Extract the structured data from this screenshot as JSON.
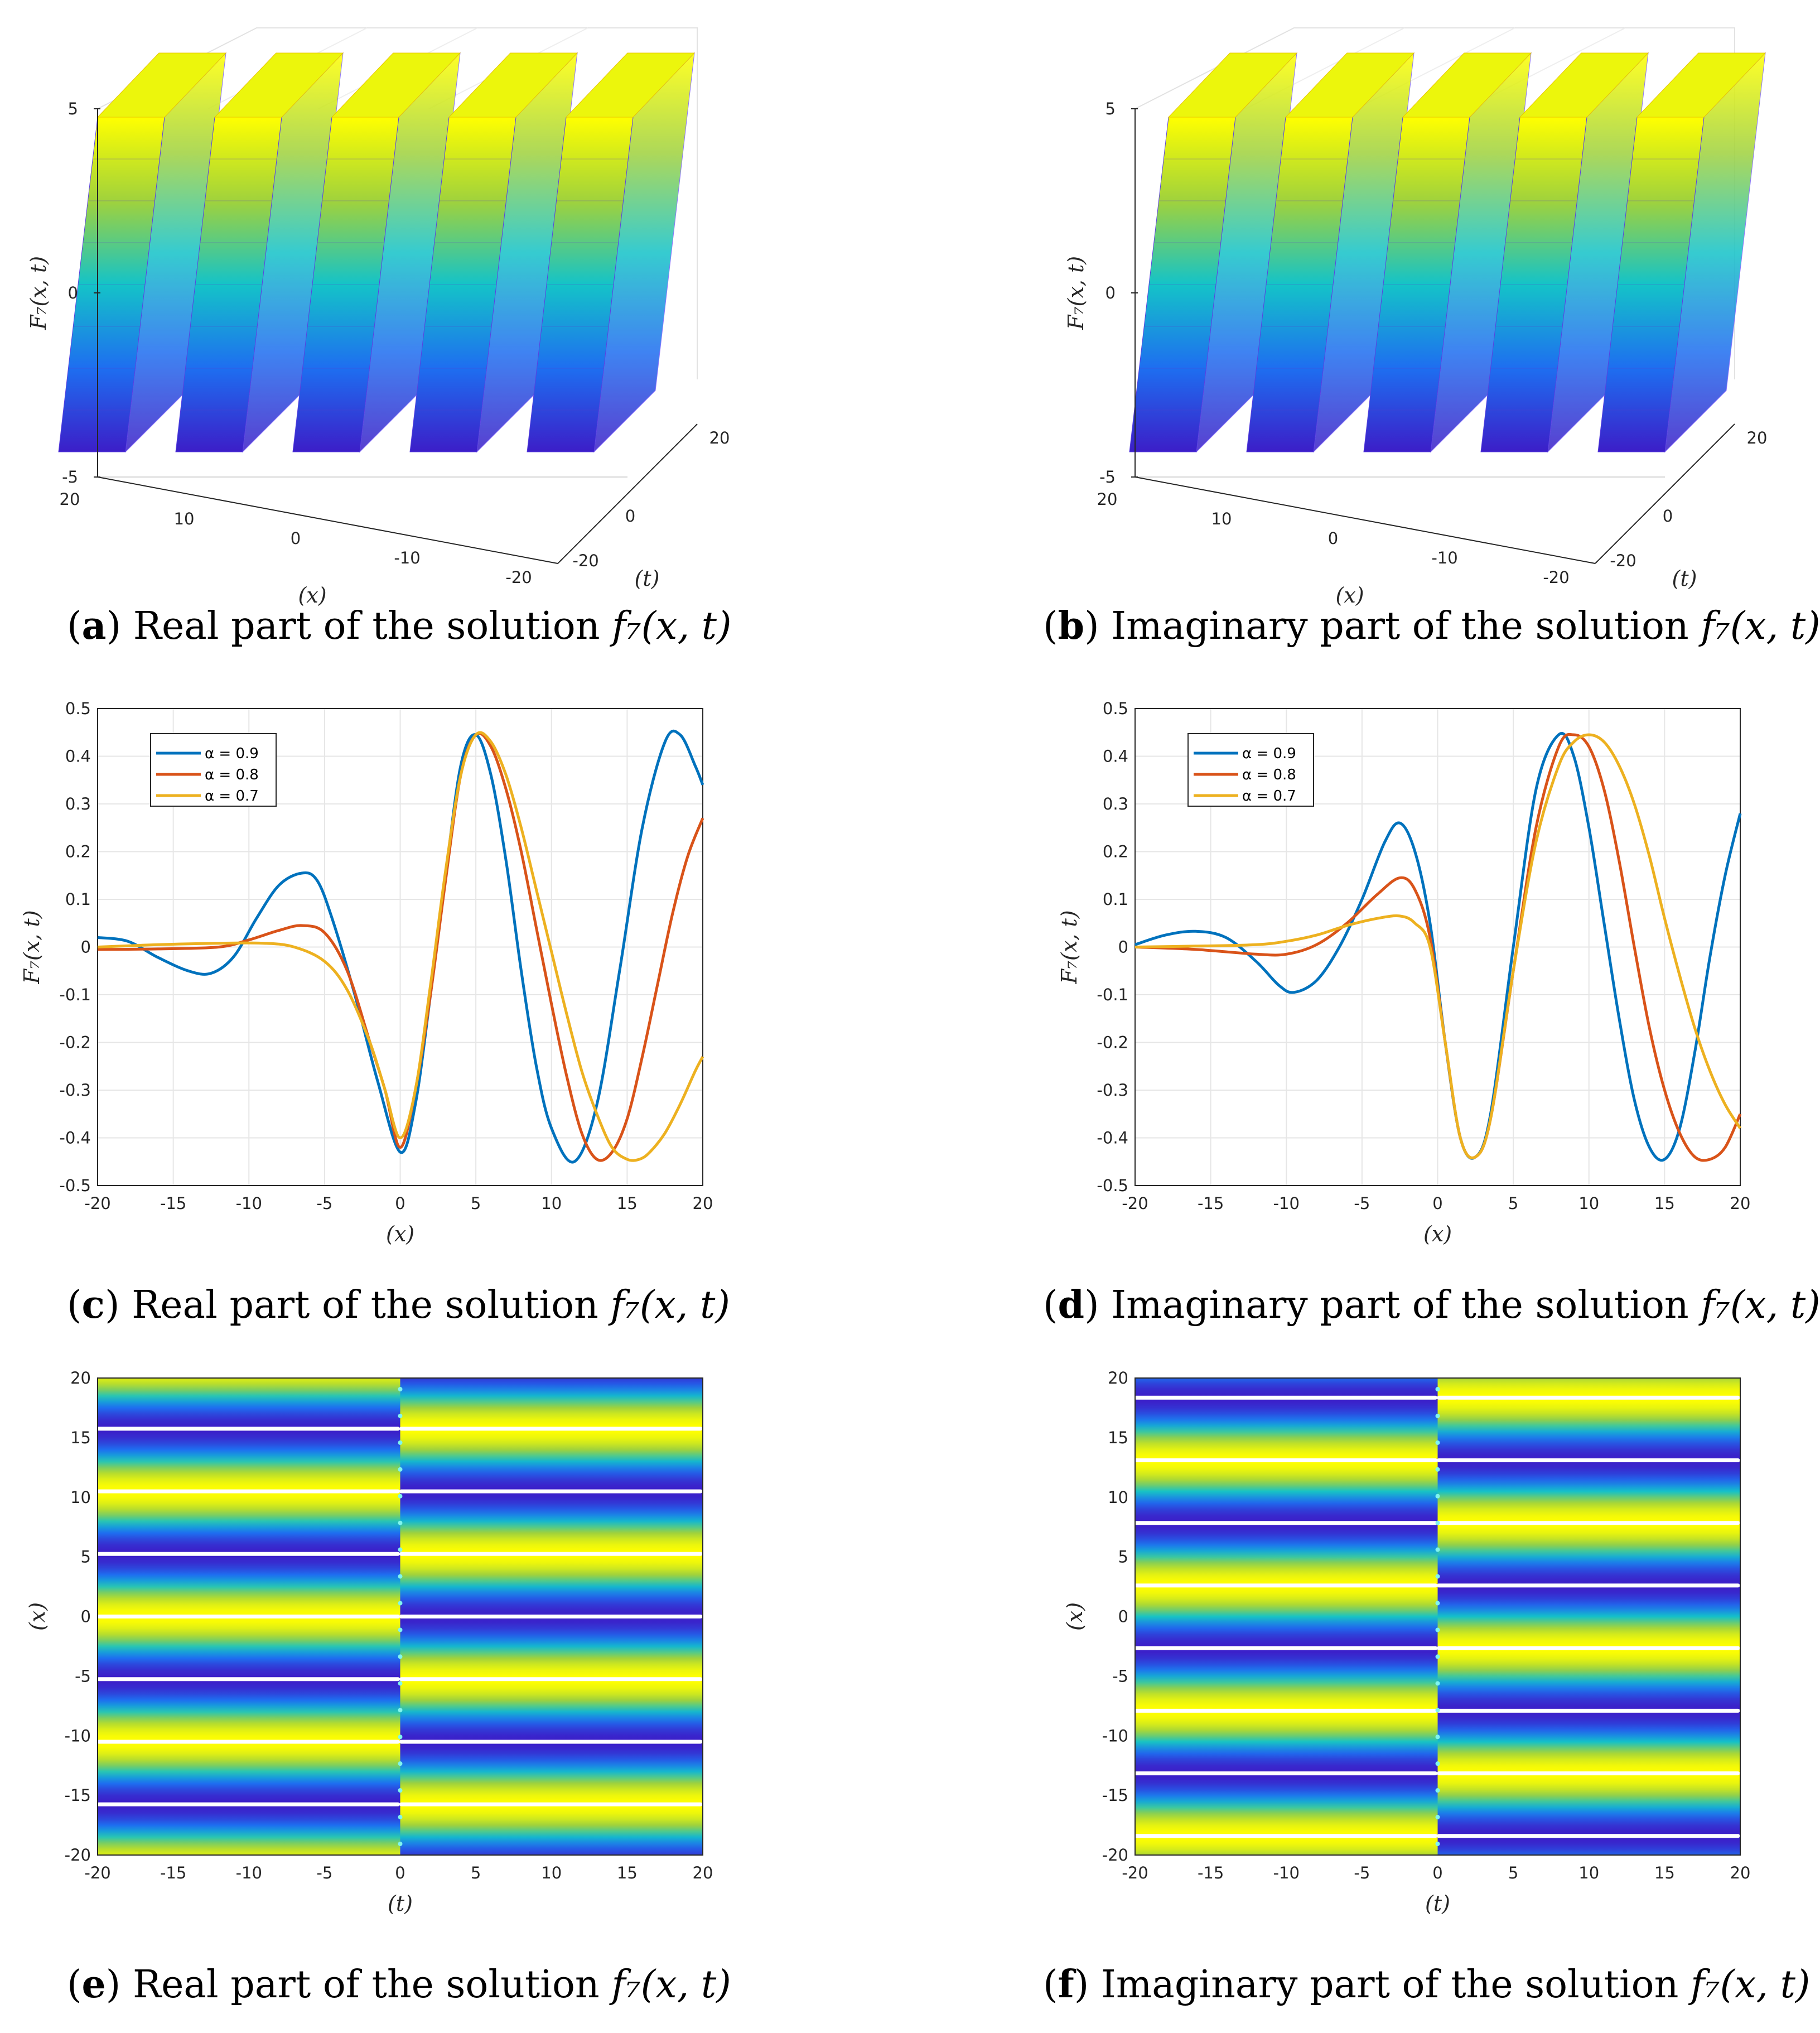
{
  "colors": {
    "series": [
      "#0072BD",
      "#D95319",
      "#EDB120"
    ],
    "surface_low": "#3c1ec8",
    "surface_high": "#ffff00"
  },
  "panels": [
    {
      "letter": "a",
      "caption": "Real part of the solution",
      "func": "f₇(x, t)"
    },
    {
      "letter": "b",
      "caption": "Imaginary part of the solution",
      "func": "f₇(x, t)"
    },
    {
      "letter": "c",
      "caption": "Real part of the solution",
      "func": "f₇(x, t)"
    },
    {
      "letter": "d",
      "caption": "Imaginary part of the solution",
      "func": "f₇(x, t)"
    },
    {
      "letter": "e",
      "caption": "Real part of the solution",
      "func": "f₇(x, t)"
    },
    {
      "letter": "f",
      "caption": "Imaginary part of the solution",
      "func": "f₇(x, t)"
    }
  ],
  "chart_data": [
    {
      "id": "a",
      "type": "surface3d",
      "kind": "real",
      "zlabel": "F₇(x, t)",
      "xlabel": "(x)",
      "ylabel": "(t)",
      "xlim": [
        -20,
        20
      ],
      "ylim": [
        -20,
        20
      ],
      "zlim": [
        -5,
        5
      ],
      "x_ticks": [
        "20",
        "10",
        "0",
        "-10",
        "-20"
      ],
      "y_ticks": [
        "-20",
        "0",
        "20"
      ],
      "z_ticks": [
        "5",
        "0",
        "-5"
      ]
    },
    {
      "id": "b",
      "type": "surface3d",
      "kind": "imag",
      "zlabel": "F₇(x, t)",
      "xlabel": "(x)",
      "ylabel": "(t)",
      "xlim": [
        -20,
        20
      ],
      "ylim": [
        -20,
        20
      ],
      "zlim": [
        -5,
        5
      ],
      "x_ticks": [
        "20",
        "10",
        "0",
        "-10",
        "-20"
      ],
      "y_ticks": [
        "-20",
        "0",
        "20"
      ],
      "z_ticks": [
        "5",
        "0",
        "-5"
      ]
    },
    {
      "id": "c",
      "type": "line",
      "xlabel": "(x)",
      "ylabel": "F₇(x, t)",
      "xlim": [
        -20,
        20
      ],
      "ylim": [
        -0.5,
        0.5
      ],
      "x_ticks": [
        "-20",
        "-15",
        "-10",
        "-5",
        "0",
        "5",
        "10",
        "15",
        "20"
      ],
      "y_ticks": [
        "0.5",
        "0.4",
        "0.3",
        "0.2",
        "0.1",
        "0",
        "-0.1",
        "-0.2",
        "-0.3",
        "-0.4",
        "-0.5"
      ],
      "grid": true,
      "legend_position": "top-left",
      "series": [
        {
          "name": "α = 0.9",
          "x": [
            -20,
            -18,
            -16,
            -14,
            -12.5,
            -11,
            -9.5,
            -8,
            -6.5,
            -5.5,
            -4.5,
            -3,
            -1.5,
            0,
            1,
            2,
            3,
            4,
            5,
            6,
            7,
            8,
            9,
            10,
            11.5,
            13,
            14.5,
            16,
            17.5,
            18.5,
            19.5,
            20
          ],
          "y": [
            0.02,
            0.012,
            -0.022,
            -0.05,
            -0.055,
            -0.02,
            0.06,
            0.13,
            0.155,
            0.14,
            0.06,
            -0.1,
            -0.28,
            -0.43,
            -0.33,
            -0.1,
            0.15,
            0.38,
            0.445,
            0.36,
            0.18,
            -0.05,
            -0.25,
            -0.38,
            -0.45,
            -0.33,
            -0.05,
            0.25,
            0.43,
            0.445,
            0.38,
            0.34
          ]
        },
        {
          "name": "α = 0.8",
          "x": [
            -20,
            -16,
            -12,
            -10,
            -8,
            -6.5,
            -5,
            -3.5,
            -2,
            -1,
            0,
            1,
            2,
            3,
            4,
            5,
            6,
            7,
            8,
            9,
            10,
            11,
            12,
            13,
            14,
            15,
            16,
            17,
            18,
            19,
            20
          ],
          "y": [
            -0.005,
            -0.004,
            0.0,
            0.015,
            0.035,
            0.045,
            0.03,
            -0.05,
            -0.2,
            -0.3,
            -0.42,
            -0.3,
            -0.1,
            0.14,
            0.36,
            0.445,
            0.42,
            0.33,
            0.2,
            0.04,
            -0.12,
            -0.27,
            -0.39,
            -0.445,
            -0.43,
            -0.36,
            -0.23,
            -0.08,
            0.07,
            0.19,
            0.27
          ]
        },
        {
          "name": "α = 0.7",
          "x": [
            -20,
            -16,
            -12,
            -9,
            -7,
            -5,
            -3.5,
            -2,
            -1,
            0,
            1,
            2,
            3,
            4,
            5,
            6,
            7,
            8,
            9,
            10,
            11,
            12,
            13,
            14,
            15,
            15.8,
            16.5,
            17.5,
            18.5,
            19.5,
            20
          ],
          "y": [
            0.0,
            0.005,
            0.008,
            0.008,
            0.0,
            -0.03,
            -0.09,
            -0.2,
            -0.3,
            -0.4,
            -0.3,
            -0.08,
            0.16,
            0.36,
            0.445,
            0.43,
            0.36,
            0.25,
            0.12,
            -0.01,
            -0.14,
            -0.26,
            -0.35,
            -0.42,
            -0.445,
            -0.445,
            -0.43,
            -0.39,
            -0.33,
            -0.26,
            -0.23
          ]
        }
      ]
    },
    {
      "id": "d",
      "type": "line",
      "xlabel": "(x)",
      "ylabel": "F₇(x, t)",
      "xlim": [
        -20,
        20
      ],
      "ylim": [
        -0.5,
        0.5
      ],
      "x_ticks": [
        "-20",
        "-15",
        "-10",
        "-5",
        "0",
        "5",
        "10",
        "15",
        "20"
      ],
      "y_ticks": [
        "0.5",
        "0.4",
        "0.3",
        "0.2",
        "0.1",
        "0",
        "-0.1",
        "-0.2",
        "-0.3",
        "-0.4",
        "-0.5"
      ],
      "grid": true,
      "legend_position": "top-left",
      "series": [
        {
          "name": "α = 0.9",
          "x": [
            -20,
            -18,
            -16,
            -14,
            -12,
            -10.5,
            -9.5,
            -8,
            -6.5,
            -5,
            -3.5,
            -2.5,
            -1.5,
            -0.5,
            0.5,
            1.5,
            2.5,
            3.5,
            5,
            6.5,
            8,
            9,
            10,
            11,
            12,
            13,
            14,
            15,
            16,
            17,
            18,
            19,
            20
          ],
          "y": [
            0.005,
            0.025,
            0.033,
            0.02,
            -0.03,
            -0.08,
            -0.095,
            -0.07,
            0.0,
            0.1,
            0.22,
            0.26,
            0.2,
            0.05,
            -0.2,
            -0.4,
            -0.44,
            -0.35,
            0.0,
            0.33,
            0.445,
            0.4,
            0.25,
            0.05,
            -0.15,
            -0.32,
            -0.42,
            -0.445,
            -0.38,
            -0.22,
            -0.02,
            0.15,
            0.28
          ]
        },
        {
          "name": "α = 0.8",
          "x": [
            -20,
            -16,
            -12,
            -10,
            -8,
            -6,
            -4,
            -2.5,
            -1.5,
            -0.5,
            0.5,
            1.5,
            2.5,
            3.5,
            5,
            6.5,
            8,
            9,
            10,
            11,
            12,
            13,
            14,
            15,
            16,
            17,
            18,
            19,
            20
          ],
          "y": [
            0.0,
            -0.005,
            -0.015,
            -0.015,
            0.005,
            0.05,
            0.11,
            0.145,
            0.12,
            0.02,
            -0.2,
            -0.4,
            -0.44,
            -0.36,
            -0.05,
            0.25,
            0.42,
            0.445,
            0.42,
            0.33,
            0.18,
            0.0,
            -0.17,
            -0.3,
            -0.39,
            -0.44,
            -0.445,
            -0.42,
            -0.35
          ]
        },
        {
          "name": "α = 0.7",
          "x": [
            -20,
            -16,
            -12,
            -10,
            -8,
            -6,
            -4,
            -2.5,
            -1.5,
            -0.5,
            0.5,
            1.5,
            2.5,
            3.5,
            5,
            6.5,
            8,
            9,
            10,
            11,
            12,
            13,
            14,
            15,
            16,
            17,
            18,
            19,
            20
          ],
          "y": [
            0.0,
            0.002,
            0.005,
            0.012,
            0.025,
            0.045,
            0.06,
            0.065,
            0.05,
            0.0,
            -0.2,
            -0.4,
            -0.44,
            -0.36,
            -0.05,
            0.22,
            0.38,
            0.43,
            0.445,
            0.43,
            0.38,
            0.3,
            0.19,
            0.06,
            -0.06,
            -0.17,
            -0.26,
            -0.33,
            -0.38
          ]
        }
      ]
    },
    {
      "id": "e",
      "type": "heatmap",
      "kind": "real",
      "xlabel": "(t)",
      "ylabel": "(x)",
      "xlim": [
        -20,
        20
      ],
      "ylim": [
        -20,
        20
      ],
      "x_ticks": [
        "-20",
        "-15",
        "-10",
        "-5",
        "0",
        "5",
        "10",
        "15",
        "20"
      ],
      "y_ticks": [
        "20",
        "15",
        "10",
        "5",
        "0",
        "-5",
        "-10",
        "-15",
        "-20"
      ],
      "band_period": 10.5
    },
    {
      "id": "f",
      "type": "heatmap",
      "kind": "imag",
      "xlabel": "(t)",
      "ylabel": "(x)",
      "xlim": [
        -20,
        20
      ],
      "ylim": [
        -20,
        20
      ],
      "x_ticks": [
        "-20",
        "-15",
        "-10",
        "-5",
        "0",
        "5",
        "10",
        "15",
        "20"
      ],
      "y_ticks": [
        "20",
        "15",
        "10",
        "5",
        "0",
        "-5",
        "-10",
        "-15",
        "-20"
      ],
      "band_period": 10.5
    }
  ]
}
